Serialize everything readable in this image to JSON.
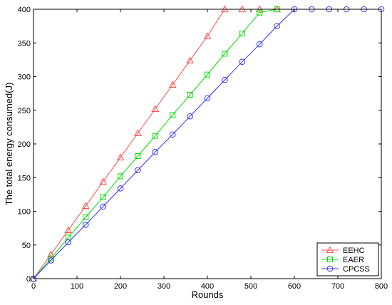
{
  "chart_data": {
    "type": "line",
    "title": "",
    "xlabel": "Rounds",
    "ylabel": "The total energy consumed(J)",
    "xlim": [
      0,
      800
    ],
    "ylim": [
      0,
      400
    ],
    "xticks": [
      0,
      100,
      200,
      300,
      400,
      500,
      600,
      700,
      800
    ],
    "yticks": [
      0,
      50,
      100,
      150,
      200,
      250,
      300,
      350,
      400
    ],
    "grid": false,
    "legend_position": "bottom-right",
    "series": [
      {
        "name": "EEHC",
        "color": "#ff4d4d",
        "marker": "triangle",
        "x": [
          0,
          40,
          80,
          120,
          160,
          200,
          240,
          280,
          320,
          360,
          400,
          440,
          480,
          520,
          560
        ],
        "y": [
          0,
          36,
          72,
          108,
          144,
          180,
          216,
          252,
          288,
          324,
          360,
          400,
          400,
          400,
          400
        ]
      },
      {
        "name": "EAER",
        "color": "#00e000",
        "marker": "square",
        "x": [
          0,
          40,
          80,
          120,
          160,
          200,
          240,
          280,
          320,
          360,
          400,
          440,
          480,
          520,
          560
        ],
        "y": [
          0,
          30,
          61,
          91,
          121,
          152,
          182,
          212,
          243,
          273,
          303,
          334,
          364,
          395,
          400
        ]
      },
      {
        "name": "CPCSS",
        "color": "#3333ff",
        "marker": "circle",
        "x": [
          0,
          40,
          80,
          120,
          160,
          200,
          240,
          280,
          320,
          360,
          400,
          440,
          480,
          520,
          560,
          600,
          640,
          680,
          720,
          760,
          800
        ],
        "y": [
          0,
          27,
          54,
          80,
          107,
          134,
          161,
          188,
          214,
          241,
          268,
          295,
          322,
          348,
          375,
          400,
          400,
          400,
          400,
          400,
          400
        ]
      }
    ]
  }
}
